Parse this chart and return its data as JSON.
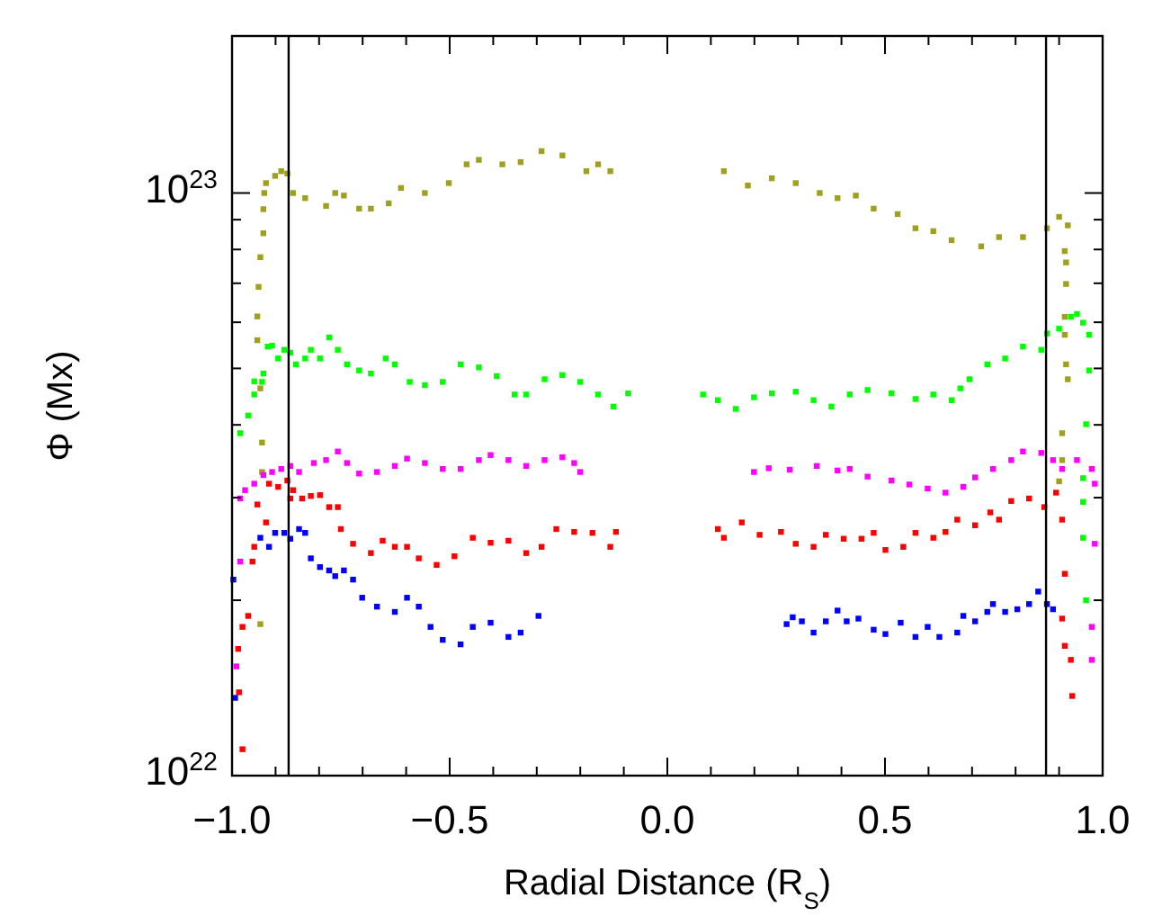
{
  "chart_data": {
    "type": "scatter",
    "xlabel": "Radial Distance (R$_{S}$)",
    "ylabel": "Φ (Mx)",
    "log": "y",
    "grid": false,
    "marker": "square",
    "xlim": [
      -1,
      1
    ],
    "ylim": [
      1e+22,
      1.86e+23
    ],
    "xticks": [
      {
        "value": -1,
        "label": "−1.0"
      },
      {
        "value": -0.9,
        "label": null
      },
      {
        "value": -0.8,
        "label": null
      },
      {
        "value": -0.7,
        "label": null
      },
      {
        "value": -0.6,
        "label": null
      },
      {
        "value": -0.5,
        "label": "−0.5"
      },
      {
        "value": -0.4,
        "label": null
      },
      {
        "value": -0.3,
        "label": null
      },
      {
        "value": -0.2,
        "label": null
      },
      {
        "value": -0.1,
        "label": null
      },
      {
        "value": 0,
        "label": "0.0"
      },
      {
        "value": 0.1,
        "label": null
      },
      {
        "value": 0.2,
        "label": null
      },
      {
        "value": 0.3,
        "label": null
      },
      {
        "value": 0.4,
        "label": null
      },
      {
        "value": 0.5,
        "label": "0.5"
      },
      {
        "value": 0.6,
        "label": null
      },
      {
        "value": 0.7,
        "label": null
      },
      {
        "value": 0.8,
        "label": null
      },
      {
        "value": 0.9,
        "label": null
      },
      {
        "value": 1,
        "label": "1.0"
      }
    ],
    "yticks": [
      {
        "value": 1e+22,
        "label": "10$^{22}$"
      },
      {
        "value": 2e+22,
        "label": null
      },
      {
        "value": 3e+22,
        "label": null
      },
      {
        "value": 4e+22,
        "label": null
      },
      {
        "value": 5e+22,
        "label": null
      },
      {
        "value": 6e+22,
        "label": null
      },
      {
        "value": 7e+22,
        "label": null
      },
      {
        "value": 8e+22,
        "label": null
      },
      {
        "value": 9e+22,
        "label": null
      },
      {
        "value": 1e+23,
        "label": "10$^{23}$"
      }
    ],
    "ref_lines": [
      {
        "axis": "x",
        "value": -0.87,
        "color": "#000000"
      },
      {
        "axis": "x",
        "value": 0.87,
        "color": "#000000"
      }
    ],
    "series": [
      {
        "color": "#a0a020",
        "x": [
          -0.935,
          -0.931,
          -0.931,
          -0.935,
          -0.942,
          -0.942,
          -0.939,
          -0.935,
          -0.928,
          -0.928,
          -0.926,
          -0.922,
          -0.901,
          -0.887,
          -0.873,
          -0.86,
          -0.832,
          -0.784,
          -0.763,
          -0.743,
          -0.708,
          -0.681,
          -0.64,
          -0.612,
          -0.557,
          -0.502,
          -0.461,
          -0.433,
          -0.379,
          -0.337,
          -0.289,
          -0.241,
          -0.186,
          -0.159,
          -0.131,
          0.13,
          0.185,
          0.24,
          0.295,
          0.35,
          0.391,
          0.433,
          0.474,
          0.529,
          0.57,
          0.611,
          0.653,
          0.721,
          0.762,
          0.817,
          0.872,
          0.9,
          0.92,
          0.913,
          0.916,
          0.916,
          0.913,
          0.913,
          0.916,
          0.92,
          0.907,
          0.907,
          0.9
        ],
        "values": [
          1.82e+22,
          3.32e+22,
          3.73e+22,
          4.62e+22,
          5.59e+22,
          6.14e+22,
          6.9e+22,
          7.76e+22,
          8.53e+22,
          9.38e+22,
          1e+23,
          1.04e+23,
          1.07e+23,
          1.09e+23,
          1.08e+23,
          1e+23,
          9.8e+22,
          9.5e+22,
          1e+23,
          9.9e+22,
          9.4e+22,
          9.4e+22,
          9.6e+22,
          1.02e+23,
          1e+23,
          1.04e+23,
          1.12e+23,
          1.14e+23,
          1.12e+23,
          1.13e+23,
          1.18e+23,
          1.16e+23,
          1.09e+23,
          1.12e+23,
          1.09e+23,
          1.09e+23,
          1.03e+23,
          1.06e+23,
          1.04e+23,
          1e+23,
          9.8e+22,
          9.9e+22,
          9.4e+22,
          9.2e+22,
          8.7e+22,
          8.6e+22,
          8.3e+22,
          8.1e+22,
          8.4e+22,
          8.4e+22,
          8.7e+22,
          9.1e+22,
          8.8e+22,
          7.95e+22,
          7.6e+22,
          6.98e+22,
          6.13e+22,
          5.71e+22,
          5.08e+22,
          4.79e+22,
          3.87e+22,
          3.48e+22,
          3.2e+22
        ]
      },
      {
        "color": "#00ff00",
        "x": [
          -0.981,
          -0.963,
          -0.949,
          -0.949,
          -0.931,
          -0.928,
          -0.918,
          -0.908,
          -0.894,
          -0.88,
          -0.866,
          -0.853,
          -0.832,
          -0.819,
          -0.798,
          -0.777,
          -0.757,
          -0.736,
          -0.708,
          -0.681,
          -0.647,
          -0.626,
          -0.592,
          -0.557,
          -0.516,
          -0.475,
          -0.433,
          -0.392,
          -0.351,
          -0.324,
          -0.282,
          -0.241,
          -0.2,
          -0.159,
          -0.124,
          -0.09,
          0.082,
          0.116,
          0.157,
          0.199,
          0.24,
          0.295,
          0.336,
          0.377,
          0.419,
          0.46,
          0.515,
          0.57,
          0.611,
          0.653,
          0.673,
          0.694,
          0.735,
          0.776,
          0.817,
          0.859,
          0.872,
          0.9,
          0.927,
          0.941,
          0.955,
          0.969,
          0.969,
          0.962,
          0.955,
          0.955,
          0.955,
          0.962
        ],
        "values": [
          3.87e+22,
          4.15e+22,
          4.51e+22,
          4.75e+22,
          4.74e+22,
          4.9e+22,
          5.45e+22,
          5.47e+22,
          5.2e+22,
          5.38e+22,
          5.32e+22,
          5.08e+22,
          5.2e+22,
          5.38e+22,
          5.2e+22,
          5.65e+22,
          5.38e+22,
          5.08e+22,
          4.96e+22,
          4.9e+22,
          5.2e+22,
          5.08e+22,
          4.74e+22,
          4.68e+22,
          4.74e+22,
          5.08e+22,
          5.02e+22,
          4.85e+22,
          4.51e+22,
          4.51e+22,
          4.79e+22,
          4.87e+22,
          4.74e+22,
          4.51e+22,
          4.3e+22,
          4.53e+22,
          4.51e+22,
          4.41e+22,
          4.26e+22,
          4.46e+22,
          4.53e+22,
          4.56e+22,
          4.41e+22,
          4.3e+22,
          4.51e+22,
          4.59e+22,
          4.53e+22,
          4.43e+22,
          4.51e+22,
          4.41e+22,
          4.62e+22,
          4.79e+22,
          5.08e+22,
          5.2e+22,
          5.45e+22,
          5.38e+22,
          5.74e+22,
          5.85e+22,
          6.13e+22,
          6.2e+22,
          5.99e+22,
          5.71e+22,
          4.96e+22,
          4.01e+22,
          3.24e+22,
          2.95e+22,
          2.56e+22,
          2e+22
        ]
      },
      {
        "color": "#ff00ff",
        "x": [
          -0.99,
          -0.981,
          -0.981,
          -0.97,
          -0.949,
          -0.928,
          -0.908,
          -0.887,
          -0.866,
          -0.846,
          -0.812,
          -0.784,
          -0.757,
          -0.736,
          -0.708,
          -0.667,
          -0.626,
          -0.598,
          -0.557,
          -0.516,
          -0.475,
          -0.433,
          -0.406,
          -0.365,
          -0.324,
          -0.282,
          -0.241,
          -0.214,
          -0.2,
          0.199,
          0.233,
          0.281,
          0.343,
          0.391,
          0.419,
          0.46,
          0.515,
          0.556,
          0.598,
          0.639,
          0.68,
          0.707,
          0.748,
          0.79,
          0.817,
          0.859,
          0.886,
          0.907,
          0.941,
          0.975,
          0.982,
          0.982,
          0.975,
          0.975
        ],
        "values": [
          1.54e+22,
          2.33e+22,
          2.99e+22,
          3.09e+22,
          3.17e+22,
          3.28e+22,
          3.32e+22,
          3.36e+22,
          3.4e+22,
          3.32e+22,
          3.44e+22,
          3.48e+22,
          3.6e+22,
          3.44e+22,
          3.3e+22,
          3.32e+22,
          3.4e+22,
          3.5e+22,
          3.44e+22,
          3.36e+22,
          3.36e+22,
          3.48e+22,
          3.55e+22,
          3.48e+22,
          3.4e+22,
          3.48e+22,
          3.52e+22,
          3.44e+22,
          3.32e+22,
          3.32e+22,
          3.37e+22,
          3.35e+22,
          3.4e+22,
          3.34e+22,
          3.36e+22,
          3.26e+22,
          3.21e+22,
          3.16e+22,
          3.11e+22,
          3.06e+22,
          3.13e+22,
          3.25e+22,
          3.36e+22,
          3.48e+22,
          3.6e+22,
          3.58e+22,
          3.48e+22,
          3.36e+22,
          3.48e+22,
          3.36e+22,
          3.17e+22,
          2.5e+22,
          1.8e+22,
          1.58e+22
        ]
      },
      {
        "color": "#ff0000",
        "x": [
          -0.976,
          -0.984,
          -0.986,
          -0.976,
          -0.963,
          -0.953,
          -0.949,
          -0.942,
          -0.922,
          -0.915,
          -0.894,
          -0.873,
          -0.866,
          -0.86,
          -0.839,
          -0.819,
          -0.798,
          -0.777,
          -0.757,
          -0.75,
          -0.722,
          -0.681,
          -0.654,
          -0.626,
          -0.598,
          -0.571,
          -0.53,
          -0.489,
          -0.447,
          -0.406,
          -0.365,
          -0.324,
          -0.289,
          -0.255,
          -0.214,
          -0.172,
          -0.131,
          -0.118,
          0.116,
          0.13,
          0.171,
          0.212,
          0.261,
          0.295,
          0.336,
          0.364,
          0.405,
          0.446,
          0.474,
          0.501,
          0.542,
          0.57,
          0.611,
          0.639,
          0.666,
          0.707,
          0.742,
          0.762,
          0.79,
          0.831,
          0.866,
          0.893,
          0.907,
          0.913,
          0.907,
          0.913,
          0.927,
          0.93
        ],
        "values": [
          1.11e+22,
          1.39e+22,
          1.65e+22,
          1.8e+22,
          1.88e+22,
          2.33e+22,
          2.47e+22,
          2.92e+22,
          2.72e+22,
          3.17e+22,
          3.13e+22,
          3.21e+22,
          2.99e+22,
          3.09e+22,
          2.99e+22,
          3.02e+22,
          3.03e+22,
          2.89e+22,
          2.89e+22,
          2.65e+22,
          2.5e+22,
          2.41e+22,
          2.53e+22,
          2.47e+22,
          2.47e+22,
          2.36e+22,
          2.3e+22,
          2.38e+22,
          2.56e+22,
          2.51e+22,
          2.53e+22,
          2.41e+22,
          2.47e+22,
          2.65e+22,
          2.62e+22,
          2.61e+22,
          2.47e+22,
          2.62e+22,
          2.65e+22,
          2.56e+22,
          2.72e+22,
          2.59e+22,
          2.62e+22,
          2.5e+22,
          2.47e+22,
          2.59e+22,
          2.55e+22,
          2.55e+22,
          2.61e+22,
          2.44e+22,
          2.47e+22,
          2.61e+22,
          2.56e+22,
          2.62e+22,
          2.75e+22,
          2.69e+22,
          2.83e+22,
          2.75e+22,
          2.96e+22,
          2.99e+22,
          2.89e+22,
          3.06e+22,
          2.75e+22,
          2.22e+22,
          1.86e+22,
          1.67e+22,
          1.58e+22,
          1.37e+22
        ]
      },
      {
        "color": "#0000ff",
        "x": [
          -0.993,
          -0.997,
          -0.935,
          -0.915,
          -0.901,
          -0.88,
          -0.866,
          -0.846,
          -0.832,
          -0.819,
          -0.798,
          -0.777,
          -0.763,
          -0.743,
          -0.722,
          -0.701,
          -0.667,
          -0.626,
          -0.598,
          -0.571,
          -0.544,
          -0.516,
          -0.475,
          -0.447,
          -0.406,
          -0.365,
          -0.337,
          -0.296,
          0.274,
          0.288,
          0.309,
          0.336,
          0.364,
          0.391,
          0.412,
          0.439,
          0.474,
          0.501,
          0.536,
          0.57,
          0.598,
          0.625,
          0.666,
          0.68,
          0.707,
          0.735,
          0.748,
          0.776,
          0.804,
          0.831,
          0.852,
          0.872,
          0.886
        ],
        "values": [
          1.36e+22,
          2.17e+22,
          2.56e+22,
          2.47e+22,
          2.61e+22,
          2.61e+22,
          2.55e+22,
          2.65e+22,
          2.61e+22,
          2.36e+22,
          2.28e+22,
          2.25e+22,
          2.2e+22,
          2.25e+22,
          2.17e+22,
          2.02e+22,
          1.95e+22,
          1.91e+22,
          2.02e+22,
          1.95e+22,
          1.8e+22,
          1.71e+22,
          1.68e+22,
          1.8e+22,
          1.83e+22,
          1.73e+22,
          1.76e+22,
          1.88e+22,
          1.82e+22,
          1.87e+22,
          1.84e+22,
          1.76e+22,
          1.84e+22,
          1.92e+22,
          1.84e+22,
          1.86e+22,
          1.78e+22,
          1.75e+22,
          1.83e+22,
          1.73e+22,
          1.8e+22,
          1.73e+22,
          1.76e+22,
          1.88e+22,
          1.84e+22,
          1.91e+22,
          1.97e+22,
          1.91e+22,
          1.93e+22,
          1.97e+22,
          2.07e+22,
          1.97e+22,
          1.93e+22
        ]
      }
    ]
  }
}
